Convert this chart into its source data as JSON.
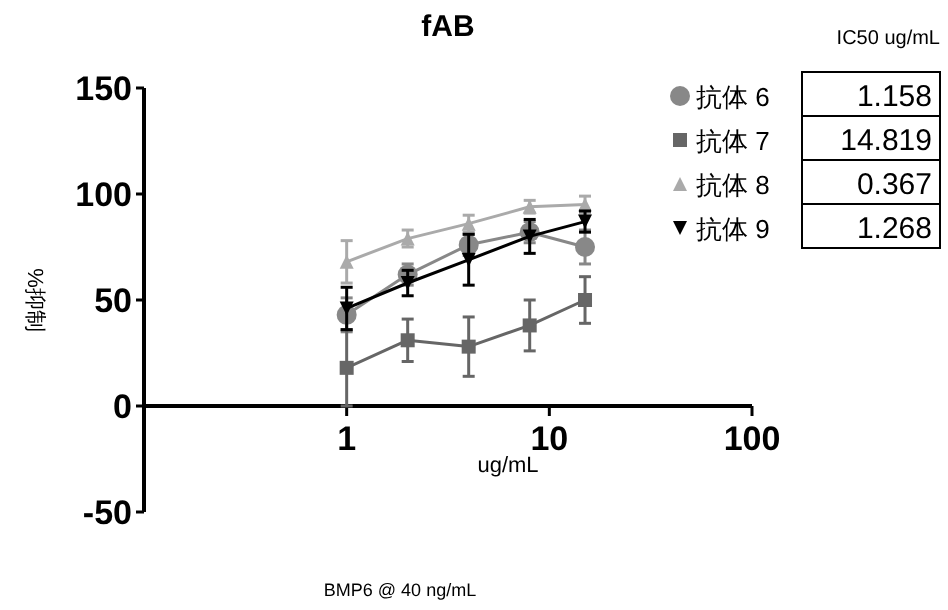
{
  "chart_data": {
    "type": "line",
    "title": "fAB",
    "xlabel": "ug/mL",
    "ylabel": "%抑制",
    "log": "x",
    "x": [
      1,
      2,
      4,
      8,
      15
    ],
    "xlim": [
      0.1,
      100
    ],
    "xticks": [
      {
        "value": 0.1,
        "label": null
      },
      1,
      10,
      100
    ],
    "ylim": [
      -50,
      150
    ],
    "yticks": [
      -50,
      0,
      50,
      100,
      150
    ],
    "grid": false,
    "legend": "right",
    "line_style": "solid",
    "series": [
      {
        "name": "抗体 6",
        "color": "#888888",
        "marker": "circle",
        "values": [
          43,
          62,
          76,
          82,
          75
        ],
        "errors": [
          8,
          5,
          5,
          5,
          8
        ]
      },
      {
        "name": "抗体 7",
        "color": "#666666",
        "marker": "square",
        "values": [
          18,
          31,
          28,
          38,
          50
        ],
        "errors": [
          18,
          10,
          14,
          12,
          11
        ]
      },
      {
        "name": "抗体 8",
        "color": "#aaaaaa",
        "marker": "triangle",
        "values": [
          68,
          79,
          86,
          94,
          95
        ],
        "errors": [
          10,
          4,
          4,
          3,
          4
        ]
      },
      {
        "name": "抗体 9",
        "color": "#000000",
        "marker": "triangle-down",
        "values": [
          46,
          58,
          69,
          80,
          87
        ],
        "errors": [
          10,
          6,
          12,
          8,
          5
        ]
      }
    ],
    "annotations": [
      "IC50 ug/mL",
      "1.158",
      "14.819",
      "0.367",
      "1.268",
      "BMP6 @ 40 ng/mL"
    ]
  }
}
